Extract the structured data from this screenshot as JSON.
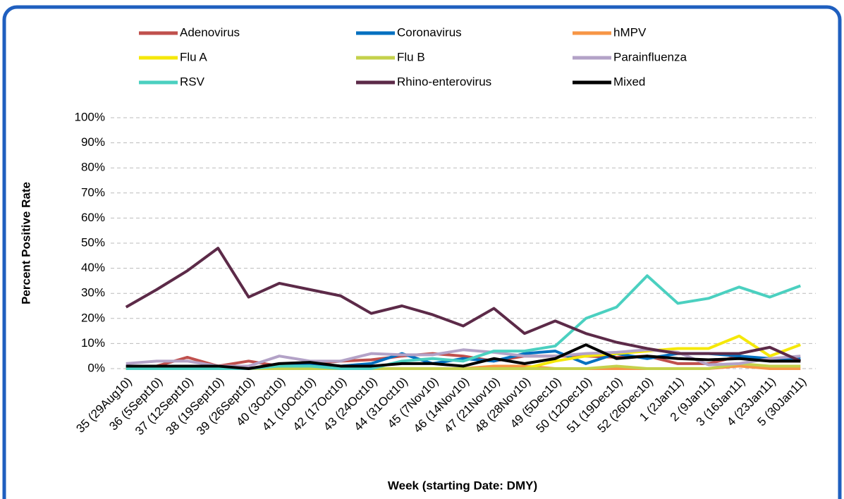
{
  "chart_data": {
    "type": "line",
    "x_label": "Week (starting Date: DMY)",
    "y_label": "Percent Positive Rate",
    "categories": [
      "35 (29Aug10)",
      "36 (5Sept10)",
      "37 (12Sept10)",
      "38 (19Sept10)",
      "39 (26Sept10)",
      "40 (3Oct10)",
      "41 (10Oct10)",
      "42 (17Oct10)",
      "43 (24Oct10)",
      "44 (31Oct10)",
      "45 (7Nov10)",
      "46 (14Nov10)",
      "47 (21Nov10)",
      "48 (28Nov10)",
      "49 (5Dec10)",
      "50 (12Dec10)",
      "51 (19Dec10)",
      "52 (26Dec10)",
      "1 (2Jan11)",
      "2 (9Jan11)",
      "3 (16Jan11)",
      "4 (23Jan11)",
      "5 (30Jan11)"
    ],
    "series": [
      {
        "name": "Adenovirus",
        "color": "#c0504d",
        "values": [
          1,
          1,
          4.5,
          1,
          3,
          1,
          2,
          3,
          3.5,
          5,
          6,
          5,
          3,
          5,
          5,
          5,
          4.5,
          5,
          2,
          2,
          5,
          3,
          3
        ]
      },
      {
        "name": "Coronavirus",
        "color": "#0070c0",
        "values": [
          1,
          1,
          1,
          1,
          0,
          1,
          2,
          1,
          2,
          6,
          2,
          4,
          3,
          6,
          7,
          2,
          6,
          4,
          6,
          6,
          5,
          4,
          4
        ]
      },
      {
        "name": "hMPV",
        "color": "#f79646",
        "values": [
          0,
          0,
          0,
          0,
          0,
          0,
          0,
          0,
          0,
          0,
          0,
          0,
          1,
          1,
          0,
          0,
          0,
          0,
          0,
          0,
          1,
          0,
          0
        ]
      },
      {
        "name": "Flu A",
        "color": "#f5e80a",
        "values": [
          0,
          0,
          0,
          0,
          0,
          0,
          0,
          0,
          0,
          0,
          0,
          0,
          0,
          0,
          3,
          5,
          6,
          7,
          8,
          8,
          13,
          5,
          9.5
        ]
      },
      {
        "name": "Flu B",
        "color": "#c4d14b",
        "values": [
          0,
          0,
          0,
          0,
          0,
          0,
          0,
          0,
          0,
          0,
          0,
          0,
          0,
          0,
          0,
          0,
          1,
          0,
          0,
          0,
          2,
          1,
          1
        ]
      },
      {
        "name": "Parainfluenza",
        "color": "#b3a2c7",
        "values": [
          2,
          3,
          3,
          1,
          1,
          5,
          3,
          3,
          6,
          5.5,
          5.5,
          7.5,
          6.5,
          5,
          5,
          6,
          6.5,
          7.5,
          6.5,
          1.5,
          2,
          4,
          5
        ]
      },
      {
        "name": "RSV",
        "color": "#4bd0c0",
        "values": [
          0,
          0,
          0,
          0,
          0,
          1,
          1,
          0,
          0,
          3,
          4,
          3,
          7,
          7,
          9,
          20,
          24.5,
          37,
          26,
          28,
          32.5,
          28.5,
          33
        ]
      },
      {
        "name": "Rhino-enterovirus",
        "color": "#5c2a48",
        "values": [
          24.5,
          31.5,
          39,
          48,
          28.5,
          34,
          31.5,
          29,
          22,
          25,
          21.5,
          17,
          24,
          14,
          19,
          14,
          10.5,
          8,
          6,
          6,
          6,
          8.5,
          3
        ]
      },
      {
        "name": "Mixed",
        "color": "#000000",
        "values": [
          1,
          1,
          1,
          1,
          0,
          2,
          2.5,
          1,
          1,
          2,
          2,
          1,
          4,
          2,
          4,
          9.5,
          4,
          5,
          4,
          3.5,
          4,
          3,
          3
        ]
      }
    ],
    "ylim": [
      0,
      100
    ],
    "yticks": [
      {
        "value": 0,
        "label": "0%"
      },
      {
        "value": 10,
        "label": "10%"
      },
      {
        "value": 20,
        "label": "20%"
      },
      {
        "value": 30,
        "label": "30%"
      },
      {
        "value": 40,
        "label": "40%"
      },
      {
        "value": 50,
        "label": "50%"
      },
      {
        "value": 60,
        "label": "60%"
      },
      {
        "value": 70,
        "label": "70%"
      },
      {
        "value": 80,
        "label": "80%"
      },
      {
        "value": 90,
        "label": "90%"
      },
      {
        "value": 100,
        "label": "100%"
      }
    ],
    "grid": true
  }
}
